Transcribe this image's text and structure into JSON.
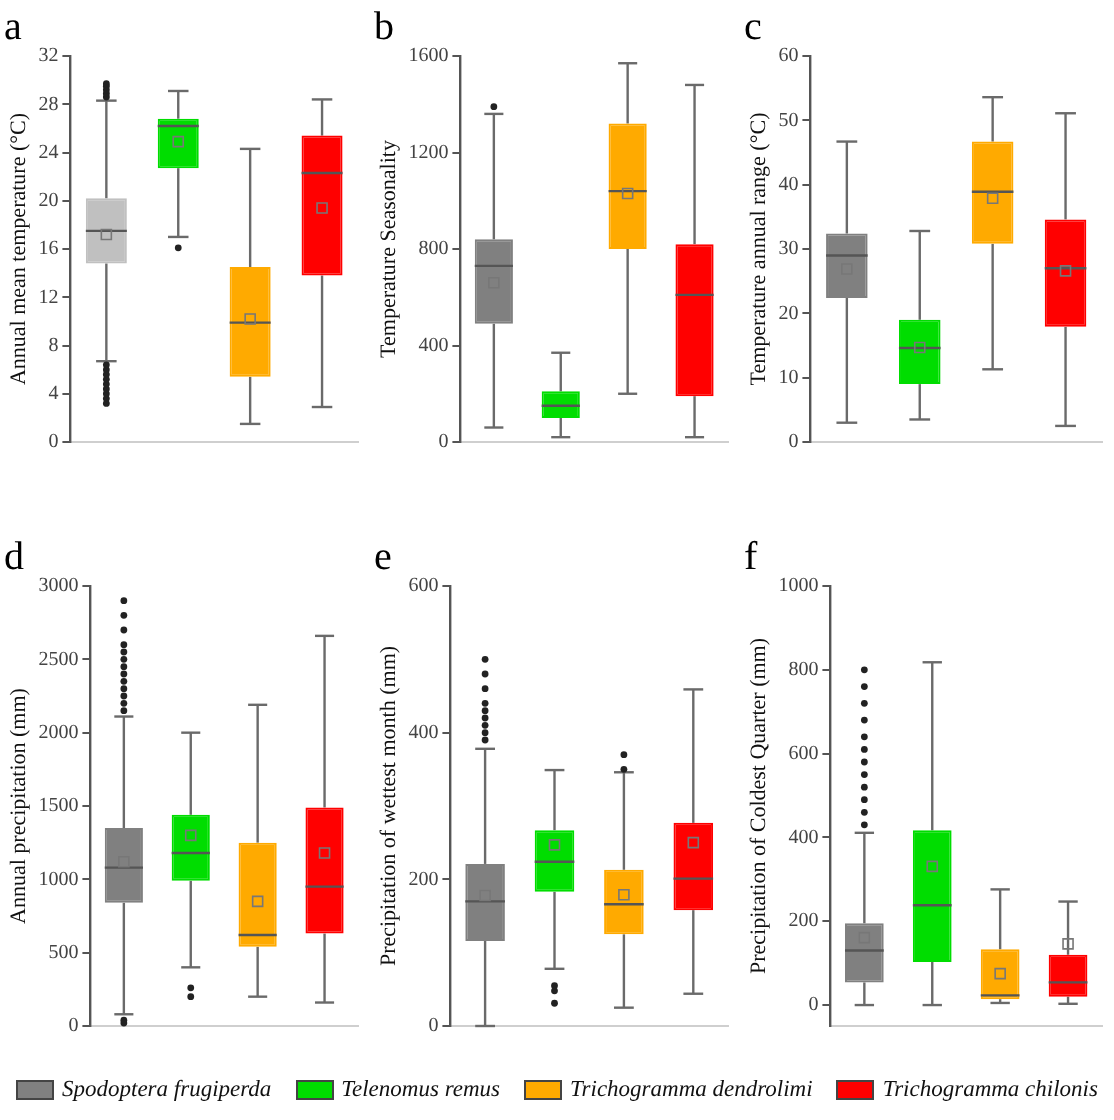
{
  "chart_data": [
    {
      "type": "box",
      "title": "a",
      "ylabel": "Annual mean temperature (°C)",
      "categories": [
        null,
        null,
        null,
        null
      ],
      "ylim": [
        0,
        32
      ],
      "yticks": [
        0,
        4,
        8,
        12,
        16,
        20,
        24,
        28,
        32
      ],
      "series": [
        {
          "color": "#c0c0c0",
          "boxes": [
            {
              "low": 6.7,
              "q1": 14.8,
              "median": 17.5,
              "q3": 20.2,
              "high": 28.3,
              "mean": 17.2,
              "outliers": [
                3.2,
                3.6,
                4.0,
                4.4,
                4.8,
                5.2,
                5.6,
                6.0,
                6.4,
                28.6,
                28.9,
                29.2,
                29.5,
                29.7
              ]
            },
            null,
            null,
            null
          ]
        },
        {
          "color": "#00dd00",
          "boxes": [
            null,
            {
              "low": 17.0,
              "q1": 22.7,
              "median": 26.2,
              "q3": 26.8,
              "high": 29.1,
              "mean": 24.9,
              "outliers": [
                16.1
              ]
            },
            null,
            null
          ]
        },
        {
          "color": "#ffaa00",
          "boxes": [
            null,
            null,
            {
              "low": 1.5,
              "q1": 5.4,
              "median": 9.9,
              "q3": 14.5,
              "high": 24.3,
              "mean": 10.2
            },
            null
          ]
        },
        {
          "color": "#ff0000",
          "boxes": [
            null,
            null,
            null,
            {
              "low": 2.9,
              "q1": 13.8,
              "median": 22.3,
              "q3": 25.4,
              "high": 28.4,
              "mean": 19.4
            }
          ]
        }
      ]
    },
    {
      "type": "box",
      "title": "b",
      "ylabel": "Temperature Seasonality",
      "categories": [
        null,
        null,
        null,
        null
      ],
      "ylim": [
        0,
        1600
      ],
      "yticks": [
        0,
        400,
        800,
        1200,
        1600
      ],
      "series": [
        {
          "color": "#808080",
          "boxes": [
            {
              "low": 60,
              "q1": 490,
              "median": 730,
              "q3": 840,
              "high": 1360,
              "mean": 660,
              "outliers": [
                1390
              ]
            },
            null,
            null,
            null
          ]
        },
        {
          "color": "#00dd00",
          "boxes": [
            null,
            {
              "low": 20,
              "q1": 100,
              "median": 150,
              "q3": 210,
              "high": 370
            },
            null,
            null
          ]
        },
        {
          "color": "#ffaa00",
          "boxes": [
            null,
            null,
            {
              "low": 200,
              "q1": 800,
              "median": 1040,
              "q3": 1320,
              "high": 1570,
              "mean": 1030
            },
            null
          ]
        },
        {
          "color": "#ff0000",
          "boxes": [
            null,
            null,
            null,
            {
              "low": 20,
              "q1": 190,
              "median": 610,
              "q3": 820,
              "high": 1480
            }
          ]
        }
      ]
    },
    {
      "type": "box",
      "title": "c",
      "ylabel": "Temperature annual range (°C)",
      "categories": [
        null,
        null,
        null,
        null
      ],
      "ylim": [
        0,
        60
      ],
      "yticks": [
        0,
        10,
        20,
        30,
        40,
        50,
        60
      ],
      "series": [
        {
          "color": "#808080",
          "boxes": [
            {
              "low": 3,
              "q1": 22.4,
              "median": 29.0,
              "q3": 32.4,
              "high": 46.7,
              "mean": 26.9
            },
            null,
            null,
            null
          ]
        },
        {
          "color": "#00dd00",
          "boxes": [
            null,
            {
              "low": 3.5,
              "q1": 9.0,
              "median": 14.6,
              "q3": 19.0,
              "high": 32.8,
              "mean": 14.7
            },
            null,
            null
          ]
        },
        {
          "color": "#ffaa00",
          "boxes": [
            null,
            null,
            {
              "low": 11.3,
              "q1": 30.8,
              "median": 38.9,
              "q3": 46.7,
              "high": 53.6,
              "mean": 37.9
            },
            null
          ]
        },
        {
          "color": "#ff0000",
          "boxes": [
            null,
            null,
            null,
            {
              "low": 2.5,
              "q1": 17.9,
              "median": 27.0,
              "q3": 34.6,
              "high": 51.1,
              "mean": 26.6
            }
          ]
        }
      ]
    },
    {
      "type": "box",
      "title": "d",
      "ylabel": "Annual precipitation (mm)",
      "categories": [
        null,
        null,
        null,
        null
      ],
      "ylim": [
        0,
        3000
      ],
      "yticks": [
        0,
        500,
        1000,
        1500,
        2000,
        2500,
        3000
      ],
      "series": [
        {
          "color": "#808080",
          "boxes": [
            {
              "low": 80,
              "q1": 840,
              "median": 1080,
              "q3": 1350,
              "high": 2110,
              "mean": 1120,
              "outliers": [
                20,
                40,
                2150,
                2200,
                2250,
                2300,
                2350,
                2400,
                2450,
                2500,
                2550,
                2600,
                2700,
                2800,
                2900
              ]
            },
            null,
            null,
            null
          ]
        },
        {
          "color": "#00dd00",
          "boxes": [
            null,
            {
              "low": 400,
              "q1": 990,
              "median": 1180,
              "q3": 1440,
              "high": 2000,
              "mean": 1300,
              "outliers": [
                200,
                260
              ]
            },
            null,
            null
          ]
        },
        {
          "color": "#ffaa00",
          "boxes": [
            null,
            null,
            {
              "low": 200,
              "q1": 540,
              "median": 620,
              "q3": 1250,
              "high": 2190,
              "mean": 850
            },
            null
          ]
        },
        {
          "color": "#ff0000",
          "boxes": [
            null,
            null,
            null,
            {
              "low": 160,
              "q1": 630,
              "median": 950,
              "q3": 1490,
              "high": 2660,
              "mean": 1180
            }
          ]
        }
      ]
    },
    {
      "type": "box",
      "title": "e",
      "ylabel": "Precipitation of wettest month (mm)",
      "categories": [
        null,
        null,
        null,
        null
      ],
      "ylim": [
        0,
        600
      ],
      "yticks": [
        0,
        200,
        400,
        600
      ],
      "legend": "bottom",
      "series": [
        {
          "name": "Spodoptera frugiperda",
          "color": "#808080",
          "boxes": [
            {
              "low": 0,
              "q1": 116,
              "median": 170,
              "q3": 221,
              "high": 378,
              "mean": 178,
              "outliers": [
                390,
                400,
                410,
                420,
                430,
                440,
                460,
                480,
                500
              ]
            },
            null,
            null,
            null
          ]
        },
        {
          "name": "Telenomus remus",
          "color": "#00dd00",
          "boxes": [
            null,
            {
              "low": 78,
              "q1": 183,
              "median": 224,
              "q3": 267,
              "high": 349,
              "mean": 247,
              "outliers": [
                31,
                48,
                55
              ]
            },
            null,
            null
          ]
        },
        {
          "name": "Trichogramma dendrolimi",
          "color": "#ffaa00",
          "boxes": [
            null,
            null,
            {
              "low": 25,
              "q1": 125,
              "median": 166,
              "q3": 213,
              "high": 346,
              "mean": 179,
              "outliers": [
                350,
                370
              ]
            },
            null
          ]
        },
        {
          "name": "Trichogramma chilonis",
          "color": "#ff0000",
          "boxes": [
            null,
            null,
            null,
            {
              "low": 44,
              "q1": 158,
              "median": 201,
              "q3": 277,
              "high": 459,
              "mean": 250
            }
          ]
        }
      ]
    },
    {
      "type": "box",
      "title": "f",
      "ylabel": "Precipitation of Coldest Quarter (mm)",
      "categories": [
        null,
        null,
        null,
        null
      ],
      "ylim": [
        -50,
        1000
      ],
      "yticks": [
        0,
        200,
        400,
        600,
        800,
        1000
      ],
      "series": [
        {
          "color": "#808080",
          "boxes": [
            {
              "low": 0,
              "q1": 54,
              "median": 130,
              "q3": 195,
              "high": 411,
              "mean": 161,
              "outliers": [
                430,
                460,
                490,
                520,
                550,
                580,
                610,
                640,
                680,
                720,
                760,
                800
              ]
            },
            null,
            null,
            null
          ]
        },
        {
          "color": "#00dd00",
          "boxes": [
            null,
            {
              "low": 0,
              "q1": 103,
              "median": 238,
              "q3": 417,
              "high": 818,
              "mean": 331
            },
            null,
            null
          ]
        },
        {
          "color": "#ffaa00",
          "boxes": [
            null,
            null,
            {
              "low": 5,
              "q1": 14,
              "median": 23,
              "q3": 133,
              "high": 276,
              "mean": 75
            },
            null
          ]
        },
        {
          "color": "#ff0000",
          "boxes": [
            null,
            null,
            null,
            {
              "low": 3,
              "q1": 20,
              "median": 54,
              "q3": 120,
              "high": 247,
              "mean": 146
            }
          ]
        }
      ]
    }
  ]
}
